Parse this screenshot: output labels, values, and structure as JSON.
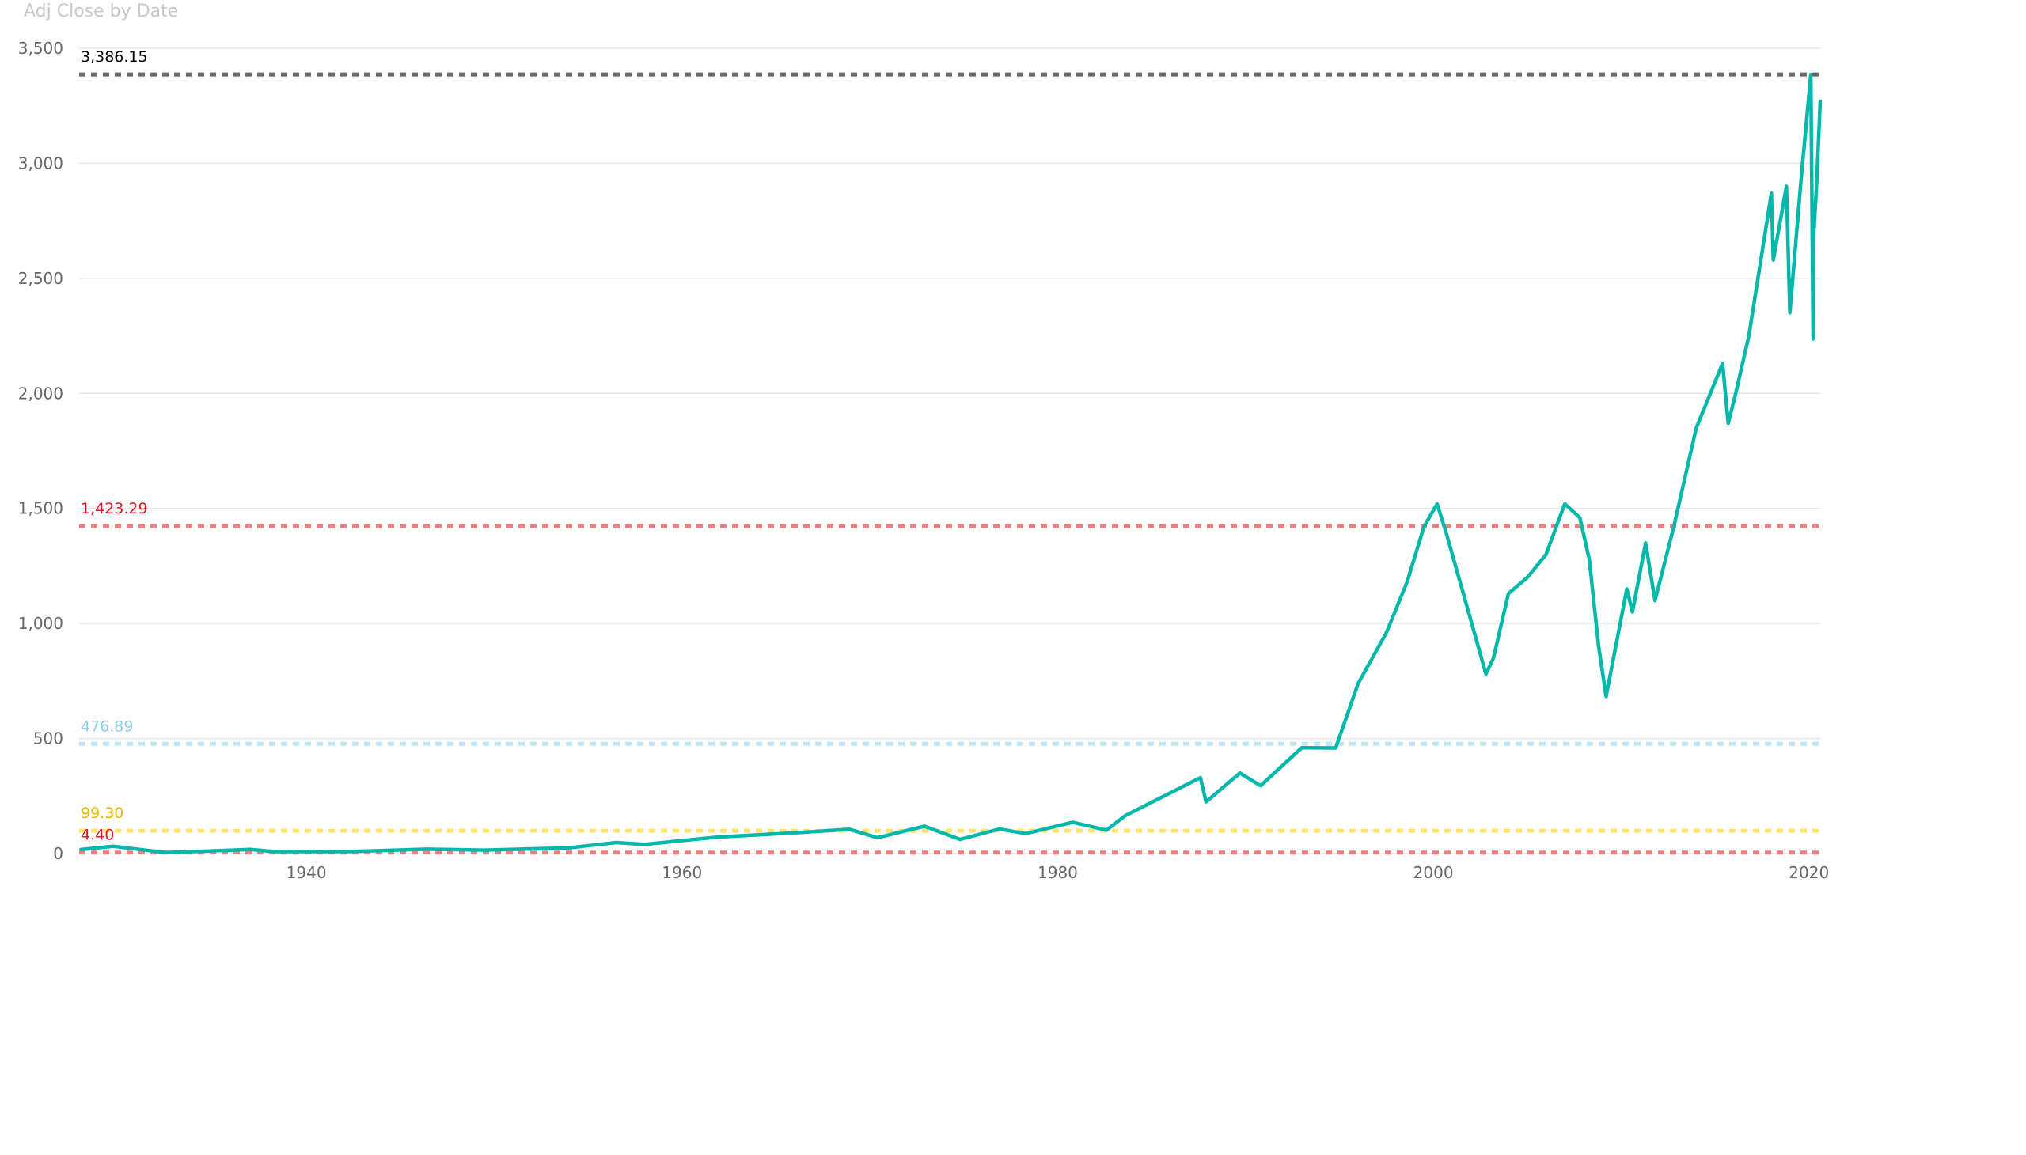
{
  "chart_data": {
    "type": "line",
    "title": "Adj Close by Date",
    "xlabel": "",
    "ylabel": "",
    "xlim": [
      1927.9,
      2020.6
    ],
    "ylim": [
      0,
      3500
    ],
    "y_ticks": [
      0,
      500,
      1000,
      1500,
      2000,
      2500,
      3000,
      3500
    ],
    "y_tick_labels": [
      "0",
      "500",
      "1,000",
      "1,500",
      "2,000",
      "2,500",
      "3,000",
      "3,500"
    ],
    "x_ticks": [
      1940,
      1960,
      1980,
      2000,
      2020
    ],
    "x_tick_labels": [
      "1940",
      "1960",
      "1980",
      "2000",
      "2020"
    ],
    "grid": true,
    "legend": "none",
    "series": [
      {
        "color": "#01B8AA",
        "x": [
          1928.0,
          1929.7,
          1932.5,
          1937.0,
          1938.3,
          1942.3,
          1946.4,
          1949.5,
          1954.0,
          1956.5,
          1958.0,
          1961.9,
          1966.0,
          1968.9,
          1970.4,
          1972.9,
          1974.8,
          1976.9,
          1978.3,
          1980.8,
          1982.6,
          1983.6,
          1987.6,
          1987.9,
          1989.7,
          1990.8,
          1993.0,
          1994.8,
          1996.0,
          1997.5,
          1998.6,
          1999.5,
          2000.2,
          2000.7,
          2001.7,
          2002.8,
          2003.2,
          2004.0,
          2005.0,
          2006.0,
          2007.0,
          2007.8,
          2008.3,
          2008.8,
          2009.2,
          2010.3,
          2010.6,
          2011.3,
          2011.8,
          2012.8,
          2014.0,
          2015.4,
          2015.7,
          2016.1,
          2016.8,
          2018.0,
          2018.1,
          2018.8,
          2018.98,
          2019.6,
          2020.1,
          2020.22,
          2020.26,
          2020.4,
          2020.6
        ],
        "y": [
          17.7,
          31.9,
          4.4,
          18.0,
          8.5,
          8.9,
          19.3,
          15.0,
          25.0,
          48.0,
          40.0,
          72.0,
          90.0,
          106.0,
          69.0,
          119.0,
          62.0,
          107.0,
          87.0,
          136.0,
          102.0,
          165.0,
          330.0,
          225.0,
          350.0,
          295.0,
          460.0,
          459.0,
          740.0,
          960.0,
          1180.0,
          1420.0,
          1520.0,
          1390.0,
          1100.0,
          780.0,
          850.0,
          1130.0,
          1200.0,
          1300.0,
          1520.0,
          1460.0,
          1280.0,
          900.0,
          683.0,
          1150.0,
          1050.0,
          1350.0,
          1100.0,
          1420.0,
          1850.0,
          2130.0,
          1870.0,
          2000.0,
          2250.0,
          2870.0,
          2580.0,
          2900.0,
          2351.0,
          2950.0,
          3386.15,
          2237.0,
          2700.0,
          2900.0,
          3270.0
        ]
      }
    ],
    "reference_lines": [
      {
        "value": 3386.15,
        "label": "3,386.15",
        "color": "#666666",
        "label_color": "#000000"
      },
      {
        "value": 1423.29,
        "label": "1,423.29",
        "color": "#F07E7E",
        "label_color": "#E81123"
      },
      {
        "value": 476.89,
        "label": "476.89",
        "color": "#BFE6F2",
        "label_color": "#8CCFE8"
      },
      {
        "value": 99.3,
        "label": "99.30",
        "color": "#FCE26E",
        "label_color": "#E6B800"
      },
      {
        "value": 4.4,
        "label": "4.40",
        "color": "#F07E7E",
        "label_color": "#E81123"
      }
    ]
  }
}
